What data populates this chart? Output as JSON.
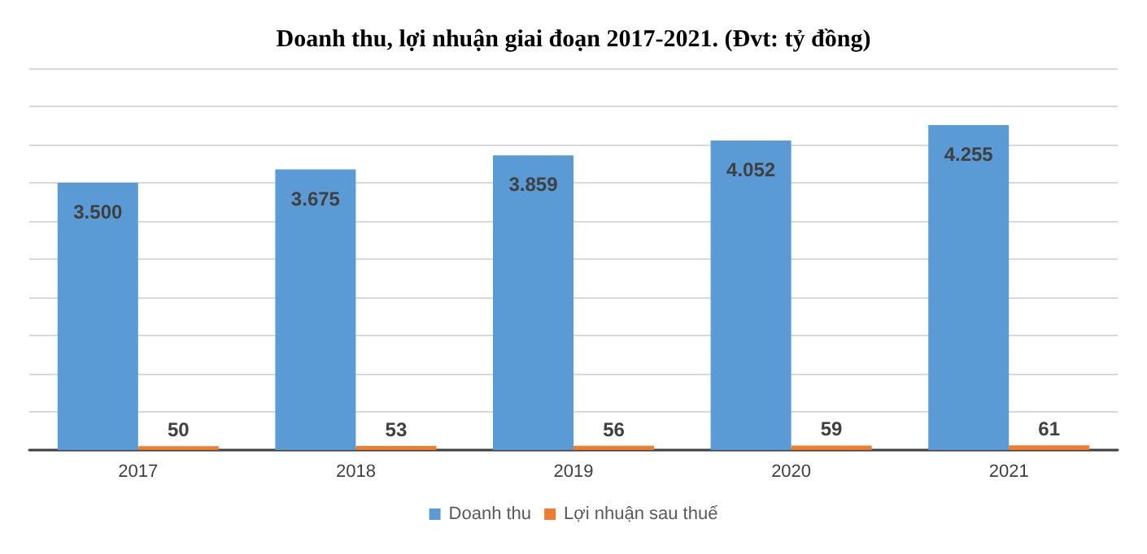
{
  "chart_data": {
    "type": "bar",
    "title": "Doanh thu, lợi nhuận giai đoạn 2017-2021. (Đvt: tỷ đồng)",
    "categories": [
      "2017",
      "2018",
      "2019",
      "2020",
      "2021"
    ],
    "series": [
      {
        "name": "Doanh thu",
        "color": "#5b9bd5",
        "values": [
          3500,
          3675,
          3859,
          4052,
          4255
        ],
        "value_labels": [
          "3.500",
          "3.675",
          "3.859",
          "4.052",
          "4.255"
        ]
      },
      {
        "name": "Lợi nhuận sau thuế",
        "color": "#ed7d31",
        "values": [
          50,
          53,
          56,
          59,
          61
        ],
        "value_labels": [
          "50",
          "53",
          "56",
          "59",
          "61"
        ]
      }
    ],
    "ylim": [
      0,
      5000
    ],
    "yticks": [
      {
        "value": 0,
        "label": null
      },
      {
        "value": 500,
        "label": null
      },
      {
        "value": 1000,
        "label": null
      },
      {
        "value": 1500,
        "label": null
      },
      {
        "value": 2000,
        "label": null
      },
      {
        "value": 2500,
        "label": null
      },
      {
        "value": 3000,
        "label": null
      },
      {
        "value": 3500,
        "label": null
      },
      {
        "value": 4000,
        "label": null
      },
      {
        "value": 4500,
        "label": null
      },
      {
        "value": 5000,
        "label": null
      }
    ],
    "tick_labels": "x",
    "grid": "y",
    "legend": "bottom"
  }
}
